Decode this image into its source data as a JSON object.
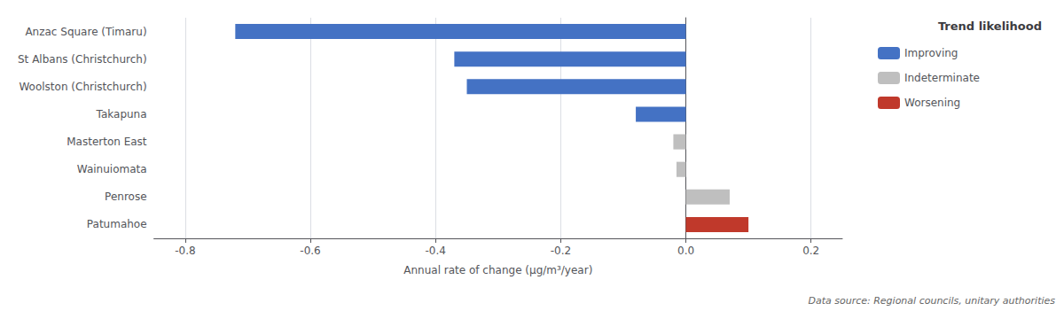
{
  "chart_data": {
    "type": "bar",
    "orientation": "horizontal",
    "categories": [
      "Anzac Square (Timaru)",
      "St Albans (Christchurch)",
      "Woolston (Christchurch)",
      "Takapuna",
      "Masterton East",
      "Wainuiomata",
      "Penrose",
      "Patumahoe"
    ],
    "series": [
      {
        "name": "Improving",
        "color": "#4472C4",
        "values": [
          -0.72,
          -0.37,
          -0.35,
          -0.08,
          null,
          null,
          null,
          null
        ]
      },
      {
        "name": "Indeterminate",
        "color": "#BFBFBF",
        "values": [
          null,
          null,
          null,
          null,
          -0.02,
          -0.015,
          0.07,
          null
        ]
      },
      {
        "name": "Worsening",
        "color": "#C0392B",
        "values": [
          null,
          null,
          null,
          null,
          null,
          null,
          null,
          0.1
        ]
      }
    ],
    "xlabel": "Annual rate of change (μg/m³/year)",
    "xlim": [
      -0.85,
      0.25
    ],
    "xticks": [
      -0.8,
      -0.6,
      -0.4,
      -0.2,
      {
        "value": 0,
        "label": "0.0"
      },
      0.2
    ],
    "grid": true,
    "legend": "right",
    "legend_title": "Trend likelihood",
    "annotation": "Data source: Regional councils, unitary authorities"
  }
}
